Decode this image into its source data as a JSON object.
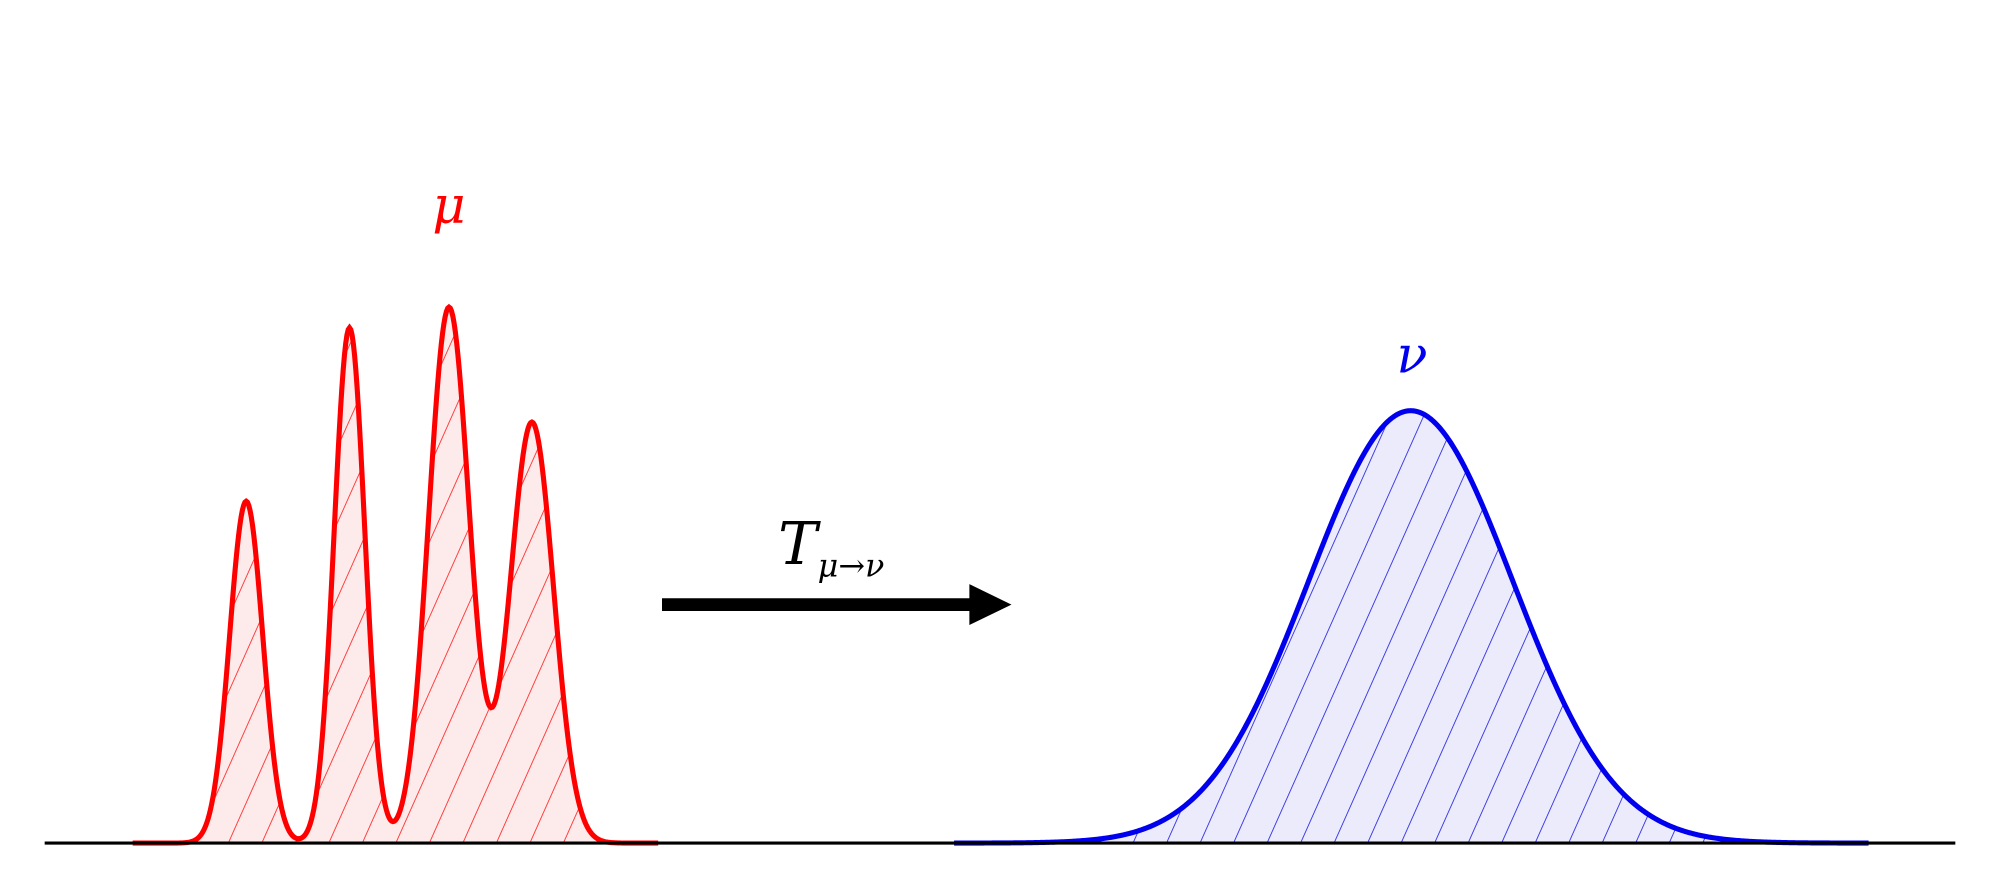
{
  "labels": {
    "mu": "μ",
    "nu": "ν",
    "map": {
      "symbol": "T",
      "subscript": "μ→ν"
    }
  }
}
